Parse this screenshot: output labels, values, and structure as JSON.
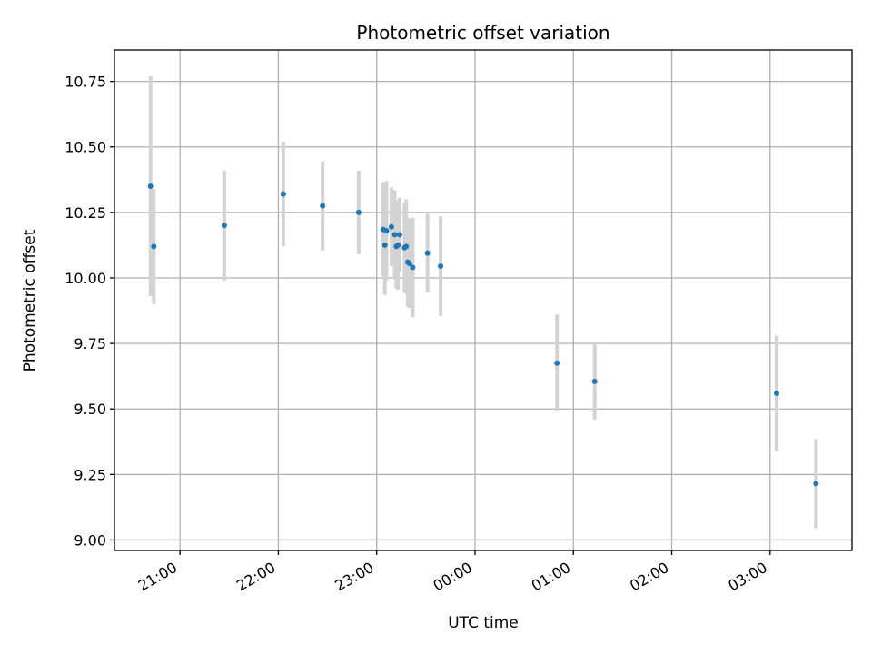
{
  "chart_data": {
    "type": "scatter",
    "title": "Photometric offset variation",
    "xlabel": "UTC time",
    "ylabel": "Photometric offset",
    "xlim": [
      "2023-01-01T20:20",
      "2023-01-02T03:50"
    ],
    "ylim": [
      8.96,
      10.87
    ],
    "grid": true,
    "x_ticks": [
      {
        "time": "2023-01-01T21:00",
        "label": "21:00"
      },
      {
        "time": "2023-01-01T22:00",
        "label": "22:00"
      },
      {
        "time": "2023-01-01T23:00",
        "label": "23:00"
      },
      {
        "time": "2023-01-02T00:00",
        "label": "00:00"
      },
      {
        "time": "2023-01-02T01:00",
        "label": "01:00"
      },
      {
        "time": "2023-01-02T02:00",
        "label": "02:00"
      },
      {
        "time": "2023-01-02T03:00",
        "label": "03:00"
      }
    ],
    "y_ticks": [
      {
        "value": 9.0,
        "label": "9.00"
      },
      {
        "value": 9.25,
        "label": "9.25"
      },
      {
        "value": 9.5,
        "label": "9.50"
      },
      {
        "value": 9.75,
        "label": "9.75"
      },
      {
        "value": 10.0,
        "label": "10.00"
      },
      {
        "value": 10.25,
        "label": "10.25"
      },
      {
        "value": 10.5,
        "label": "10.50"
      },
      {
        "value": 10.75,
        "label": "10.75"
      }
    ],
    "points": [
      {
        "x": "2023-01-01T20:42",
        "y": 10.35,
        "yerr": 0.42
      },
      {
        "x": "2023-01-01T20:44",
        "y": 10.12,
        "yerr": 0.22
      },
      {
        "x": "2023-01-01T21:27",
        "y": 10.2,
        "yerr": 0.21
      },
      {
        "x": "2023-01-01T22:03",
        "y": 10.32,
        "yerr": 0.2
      },
      {
        "x": "2023-01-01T22:27",
        "y": 10.275,
        "yerr": 0.17
      },
      {
        "x": "2023-01-01T22:49",
        "y": 10.25,
        "yerr": 0.16
      },
      {
        "x": "2023-01-01T23:04",
        "y": 10.185,
        "yerr": 0.18
      },
      {
        "x": "2023-01-01T23:05",
        "y": 10.125,
        "yerr": 0.19
      },
      {
        "x": "2023-01-01T23:06",
        "y": 10.18,
        "yerr": 0.19
      },
      {
        "x": "2023-01-01T23:09",
        "y": 10.195,
        "yerr": 0.15
      },
      {
        "x": "2023-01-01T23:11",
        "y": 10.165,
        "yerr": 0.17
      },
      {
        "x": "2023-01-01T23:12",
        "y": 10.12,
        "yerr": 0.16
      },
      {
        "x": "2023-01-01T23:13",
        "y": 10.125,
        "yerr": 0.17
      },
      {
        "x": "2023-01-01T23:14",
        "y": 10.165,
        "yerr": 0.14
      },
      {
        "x": "2023-01-01T23:17",
        "y": 10.115,
        "yerr": 0.17
      },
      {
        "x": "2023-01-01T23:18",
        "y": 10.12,
        "yerr": 0.18
      },
      {
        "x": "2023-01-01T23:19",
        "y": 10.06,
        "yerr": 0.17
      },
      {
        "x": "2023-01-01T23:20",
        "y": 10.055,
        "yerr": 0.17
      },
      {
        "x": "2023-01-01T23:22",
        "y": 10.04,
        "yerr": 0.19
      },
      {
        "x": "2023-01-01T23:31",
        "y": 10.095,
        "yerr": 0.15
      },
      {
        "x": "2023-01-01T23:39",
        "y": 10.045,
        "yerr": 0.19
      },
      {
        "x": "2023-01-02T00:50",
        "y": 9.675,
        "yerr": 0.185
      },
      {
        "x": "2023-01-02T01:13",
        "y": 9.605,
        "yerr": 0.145
      },
      {
        "x": "2023-01-02T03:04",
        "y": 9.56,
        "yerr": 0.22
      },
      {
        "x": "2023-01-02T03:28",
        "y": 9.215,
        "yerr": 0.17
      }
    ],
    "colors": {
      "point": "#1f77b4",
      "errorbar": "#d3d3d3",
      "grid": "#b0b0b0",
      "axes": "#000000"
    }
  }
}
